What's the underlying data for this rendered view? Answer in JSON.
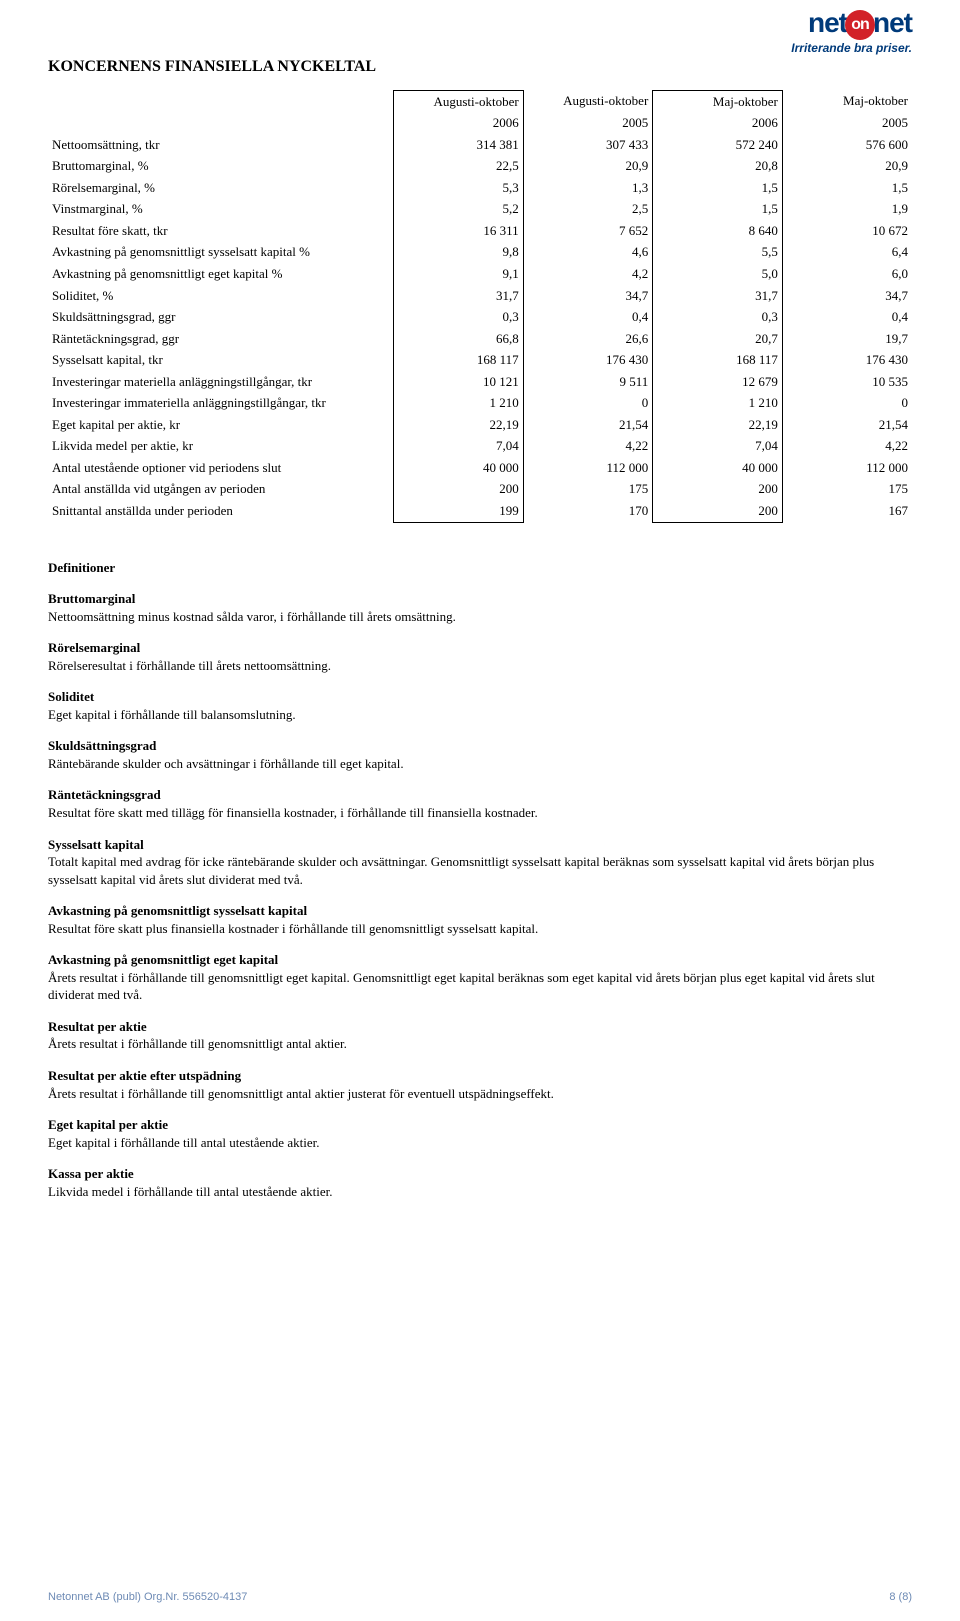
{
  "logo": {
    "part1": "net",
    "badge": "on",
    "part2": "net",
    "tagline": "Irriterande bra priser."
  },
  "title": "KONCERNENS FINANSIELLA NYCKELTAL",
  "table": {
    "header_periods": [
      "Augusti-oktober",
      "Augusti-oktober",
      "Maj-oktober",
      "Maj-oktober"
    ],
    "header_years": [
      "2006",
      "2005",
      "2006",
      "2005"
    ],
    "rows": [
      {
        "label": "Nettoomsättning, tkr",
        "v": [
          "314 381",
          "307 433",
          "572 240",
          "576 600"
        ]
      },
      {
        "label": "Bruttomarginal, %",
        "v": [
          "22,5",
          "20,9",
          "20,8",
          "20,9"
        ]
      },
      {
        "label": "Rörelsemarginal, %",
        "v": [
          "5,3",
          "1,3",
          "1,5",
          "1,5"
        ]
      },
      {
        "label": "Vinstmarginal, %",
        "v": [
          "5,2",
          "2,5",
          "1,5",
          "1,9"
        ]
      },
      {
        "label": "Resultat före skatt, tkr",
        "v": [
          "16 311",
          "7 652",
          "8 640",
          "10 672"
        ]
      },
      {
        "label": "Avkastning på genomsnittligt sysselsatt kapital %",
        "v": [
          "9,8",
          "4,6",
          "5,5",
          "6,4"
        ]
      },
      {
        "label": "Avkastning på genomsnittligt eget kapital %",
        "v": [
          "9,1",
          "4,2",
          "5,0",
          "6,0"
        ]
      },
      {
        "label": "Soliditet, %",
        "v": [
          "31,7",
          "34,7",
          "31,7",
          "34,7"
        ]
      },
      {
        "label": "Skuldsättningsgrad, ggr",
        "v": [
          "0,3",
          "0,4",
          "0,3",
          "0,4"
        ]
      },
      {
        "label": "Räntetäckningsgrad, ggr",
        "v": [
          "66,8",
          "26,6",
          "20,7",
          "19,7"
        ]
      },
      {
        "label": "Sysselsatt kapital, tkr",
        "v": [
          "168 117",
          "176 430",
          "168 117",
          "176 430"
        ]
      },
      {
        "label": "Investeringar materiella anläggningstillgångar, tkr",
        "v": [
          "10 121",
          "9 511",
          "12 679",
          "10 535"
        ]
      },
      {
        "label": "Investeringar immateriella anläggningstillgångar, tkr",
        "v": [
          "1 210",
          "0",
          "1 210",
          "0"
        ]
      },
      {
        "label": "Eget kapital per aktie, kr",
        "v": [
          "22,19",
          "21,54",
          "22,19",
          "21,54"
        ]
      },
      {
        "label": "Likvida medel per aktie, kr",
        "v": [
          "7,04",
          "4,22",
          "7,04",
          "4,22"
        ]
      },
      {
        "label": "Antal utestående optioner vid periodens slut",
        "v": [
          "40 000",
          "112 000",
          "40 000",
          "112 000"
        ]
      },
      {
        "label": "Antal anställda vid utgången av perioden",
        "v": [
          "200",
          "175",
          "200",
          "175"
        ]
      },
      {
        "label": "Snittantal anställda under perioden",
        "v": [
          "199",
          "170",
          "200",
          "167"
        ]
      }
    ]
  },
  "definitions_heading": "Definitioner",
  "definitions": [
    {
      "term": "Bruttomarginal",
      "body": "Nettoomsättning minus kostnad sålda varor, i förhållande till årets omsättning."
    },
    {
      "term": "Rörelsemarginal",
      "body": "Rörelseresultat i förhållande till årets nettoomsättning."
    },
    {
      "term": "Soliditet",
      "body": "Eget kapital i förhållande till balansomslutning."
    },
    {
      "term": "Skuldsättningsgrad",
      "body": "Räntebärande skulder och avsättningar i förhållande till eget kapital."
    },
    {
      "term": "Räntetäckningsgrad",
      "body": "Resultat före skatt med tillägg för finansiella kostnader, i förhållande till finansiella kostnader."
    },
    {
      "term": "Sysselsatt kapital",
      "body": "Totalt kapital med avdrag för icke räntebärande skulder och avsättningar. Genomsnittligt sysselsatt kapital beräknas som sysselsatt kapital vid årets början plus sysselsatt kapital vid årets slut dividerat med två."
    },
    {
      "term": "Avkastning på genomsnittligt sysselsatt kapital",
      "body": "Resultat före skatt plus finansiella kostnader i förhållande till genomsnittligt sysselsatt kapital."
    },
    {
      "term": "Avkastning på genomsnittligt eget kapital",
      "body": "Årets resultat i förhållande till genomsnittligt eget kapital. Genomsnittligt eget kapital beräknas som eget kapital vid årets början plus eget kapital vid årets slut dividerat med två."
    },
    {
      "term": "Resultat per aktie",
      "body": "Årets resultat i förhållande till genomsnittligt antal aktier."
    },
    {
      "term": "Resultat per aktie efter utspädning",
      "body": "Årets resultat i förhållande till genomsnittligt antal aktier justerat för eventuell utspädningseffekt."
    },
    {
      "term": "Eget kapital per aktie",
      "body": "Eget kapital i förhållande till antal utestående aktier."
    },
    {
      "term": "Kassa per aktie",
      "body": "Likvida medel i förhållande till antal utestående aktier."
    }
  ],
  "footer": {
    "left": "Netonnet AB (publ)  Org.Nr. 556520-4137",
    "right": "8 (8)"
  }
}
